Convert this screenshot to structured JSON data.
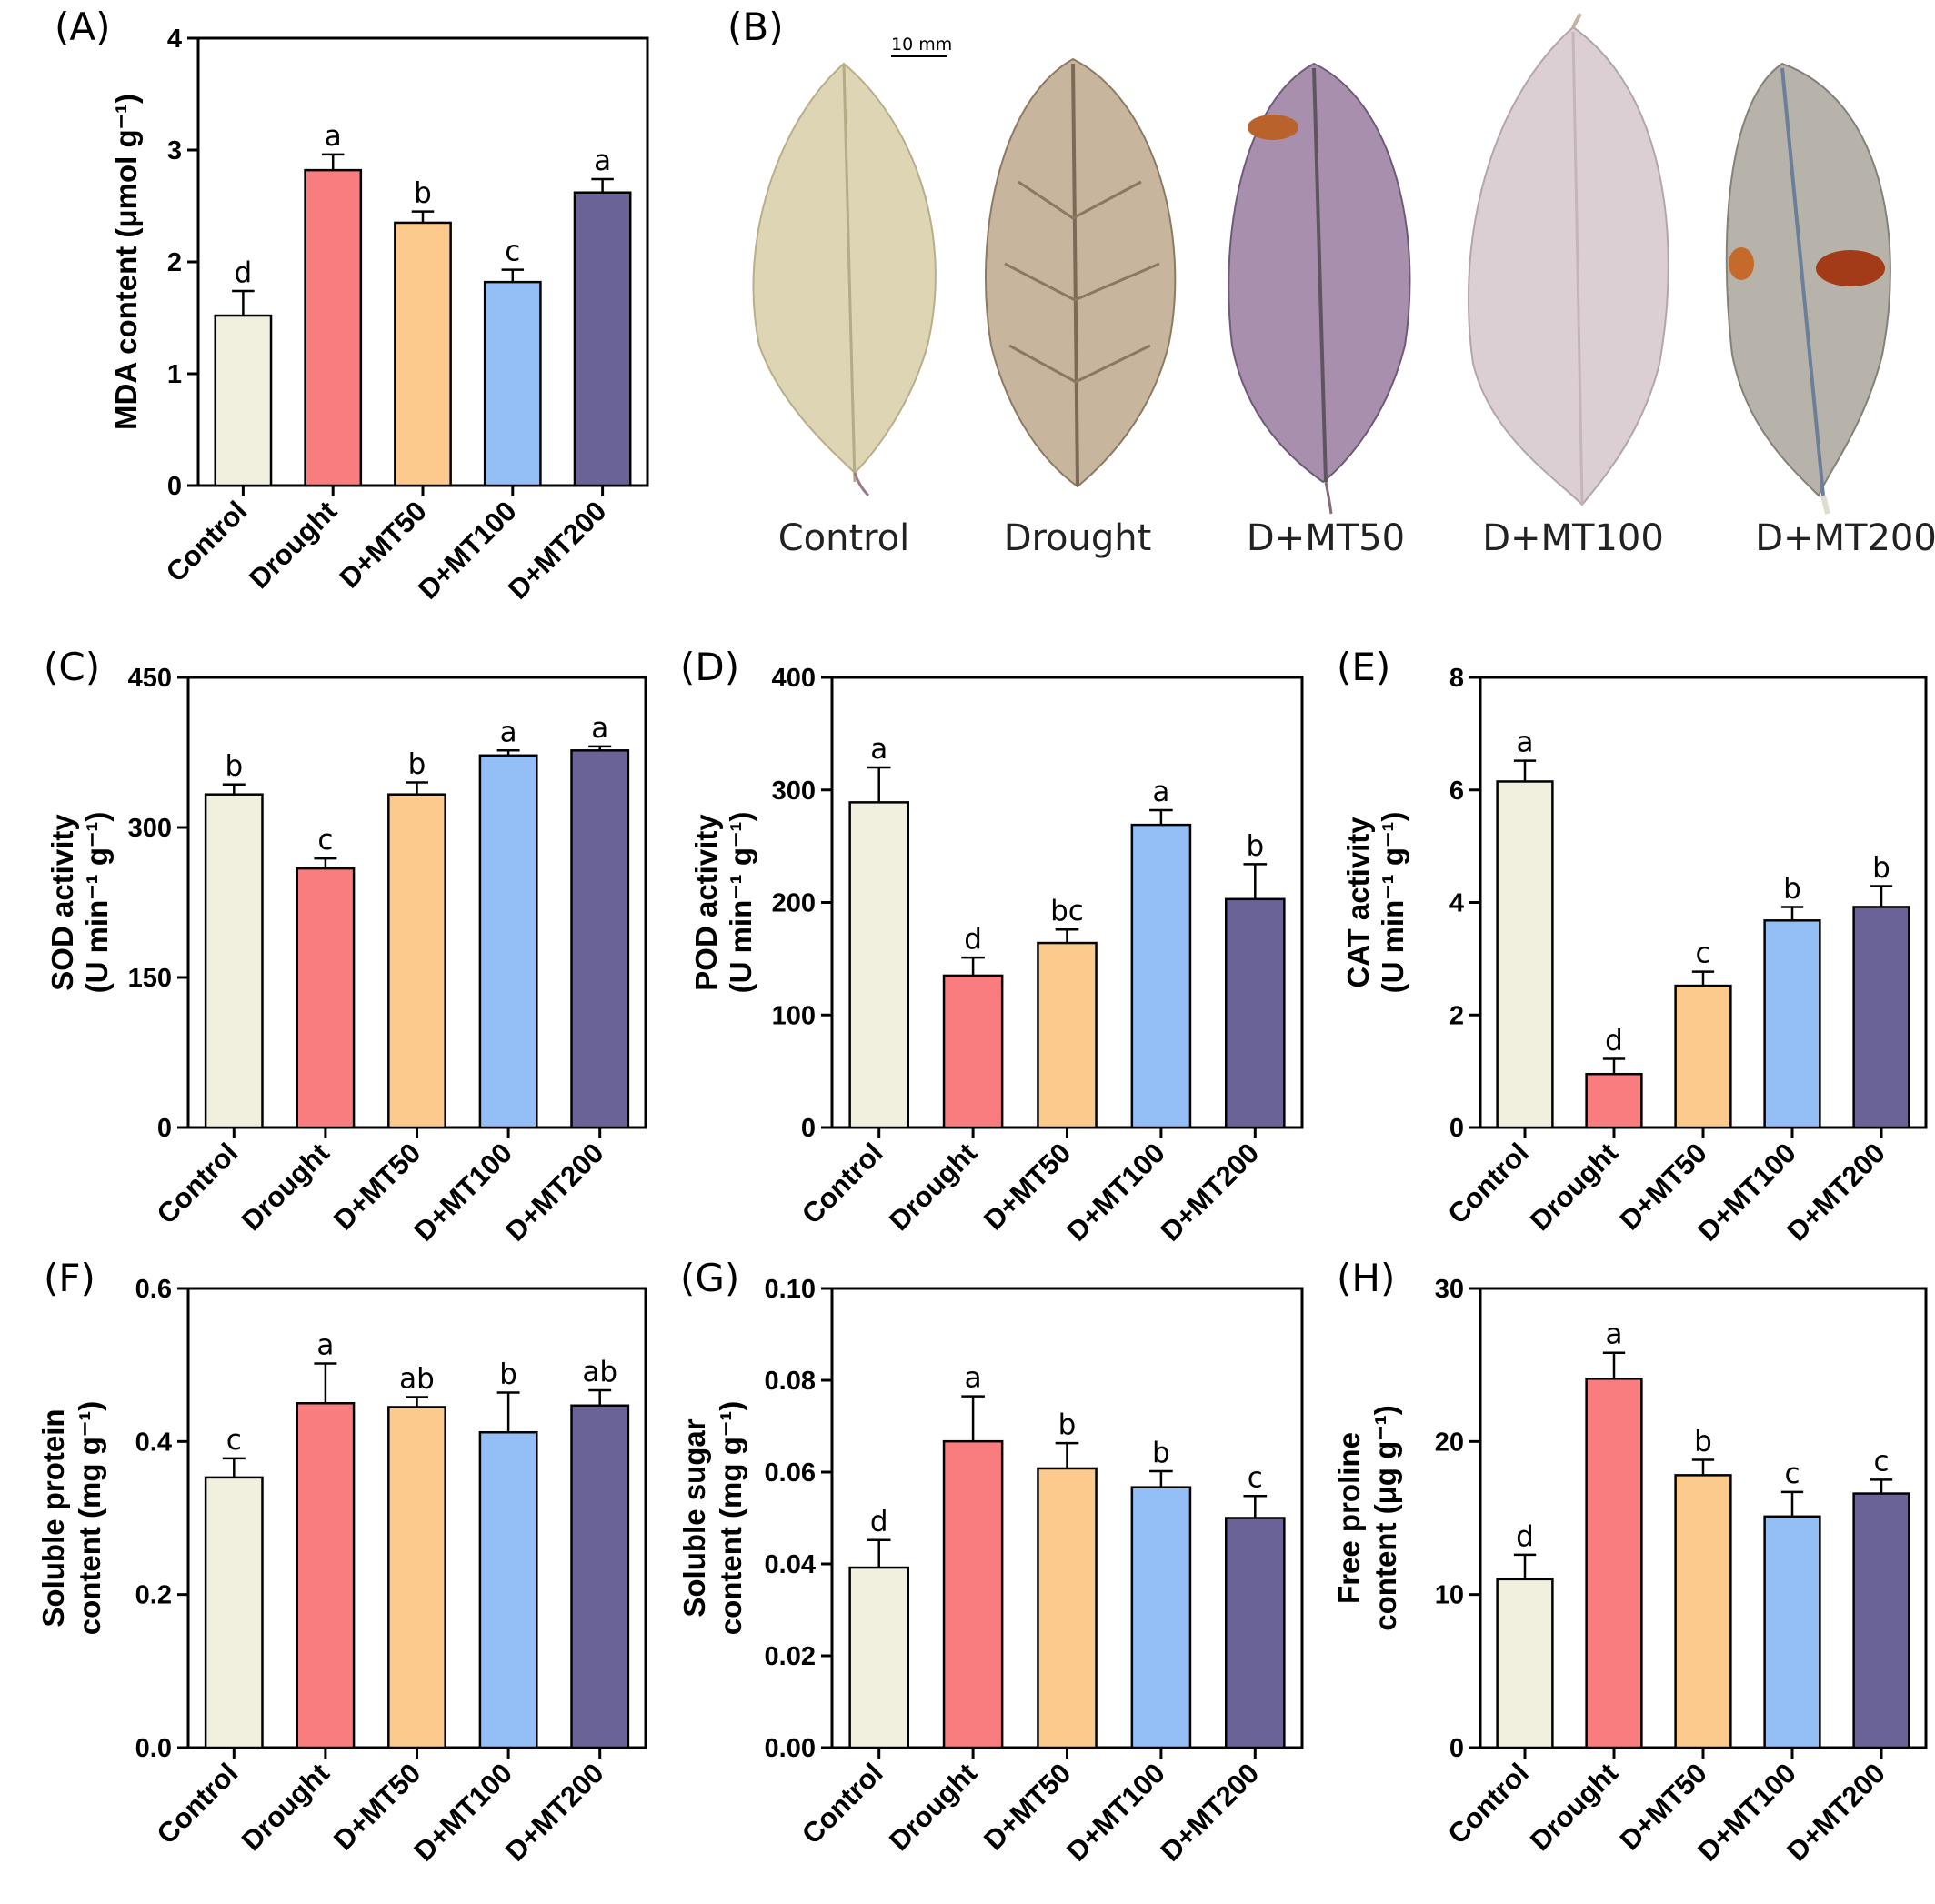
{
  "chart_data": [
    {
      "panel": "(A)",
      "type": "bar",
      "categories": [
        "Control",
        "Drought",
        "D+MT50",
        "D+MT100",
        "D+MT200"
      ],
      "values": [
        1.52,
        2.82,
        2.35,
        1.82,
        2.62
      ],
      "errors": [
        0.22,
        0.14,
        0.1,
        0.11,
        0.12
      ],
      "letters": [
        "d",
        "a",
        "b",
        "c",
        "a"
      ],
      "ylabel": "MDA content (μmol g⁻¹)",
      "ylim": [
        0,
        4
      ],
      "yticks": [
        "0",
        "1",
        "2",
        "3",
        "4"
      ]
    },
    {
      "panel": "(C)",
      "type": "bar",
      "categories": [
        "Control",
        "Drought",
        "D+MT50",
        "D+MT100",
        "D+MT200"
      ],
      "values": [
        333,
        259,
        333,
        372,
        377
      ],
      "errors": [
        10,
        10,
        12,
        5,
        4
      ],
      "letters": [
        "b",
        "c",
        "b",
        "a",
        "a"
      ],
      "ylabel": "SOD activity",
      "ylabel2": "(U min⁻¹ g⁻¹)",
      "ylim": [
        0,
        450
      ],
      "yticks": [
        "0",
        "150",
        "300",
        "450"
      ]
    },
    {
      "panel": "(D)",
      "type": "bar",
      "categories": [
        "Control",
        "Drought",
        "D+MT50",
        "D+MT100",
        "D+MT200"
      ],
      "values": [
        289,
        135,
        164,
        269,
        203
      ],
      "errors": [
        31,
        16,
        12,
        13,
        31
      ],
      "letters": [
        "a",
        "d",
        "bc",
        "a",
        "b"
      ],
      "ylabel": "POD activity",
      "ylabel2": "(U min⁻¹ g⁻¹)",
      "ylim": [
        0,
        400
      ],
      "yticks": [
        "0",
        "100",
        "200",
        "300",
        "400"
      ]
    },
    {
      "panel": "(E)",
      "type": "bar",
      "categories": [
        "Control",
        "Drought",
        "D+MT50",
        "D+MT100",
        "D+MT200"
      ],
      "values": [
        6.15,
        0.95,
        2.52,
        3.68,
        3.92
      ],
      "errors": [
        0.37,
        0.27,
        0.25,
        0.24,
        0.37
      ],
      "letters": [
        "a",
        "d",
        "c",
        "b",
        "b"
      ],
      "ylabel": "CAT activity",
      "ylabel2": "(U min⁻¹ g⁻¹)",
      "ylim": [
        0,
        8
      ],
      "yticks": [
        "0",
        "2",
        "4",
        "6",
        "8"
      ]
    },
    {
      "panel": "(F)",
      "type": "bar",
      "categories": [
        "Control",
        "Drought",
        "D+MT50",
        "D+MT100",
        "D+MT200"
      ],
      "values": [
        0.353,
        0.45,
        0.445,
        0.412,
        0.447
      ],
      "errors": [
        0.025,
        0.052,
        0.013,
        0.052,
        0.02
      ],
      "letters": [
        "c",
        "a",
        "ab",
        "b",
        "ab"
      ],
      "ylabel": "Soluble protein",
      "ylabel2": "content (mg g⁻¹)",
      "ylim": [
        0,
        0.6
      ],
      "yticks": [
        "0.0",
        "0.2",
        "0.4",
        "0.6"
      ]
    },
    {
      "panel": "(G)",
      "type": "bar",
      "categories": [
        "Control",
        "Drought",
        "D+MT50",
        "D+MT100",
        "D+MT200"
      ],
      "values": [
        0.0392,
        0.0667,
        0.0608,
        0.0567,
        0.05
      ],
      "errors": [
        0.006,
        0.0098,
        0.0055,
        0.0035,
        0.0048
      ],
      "letters": [
        "d",
        "a",
        "b",
        "b",
        "c"
      ],
      "ylabel": "Soluble sugar",
      "ylabel2": "content (mg g⁻¹)",
      "ylim": [
        0,
        0.1
      ],
      "yticks": [
        "0.00",
        "0.02",
        "0.04",
        "0.06",
        "0.08",
        "0.10"
      ]
    },
    {
      "panel": "(H)",
      "type": "bar",
      "categories": [
        "Control",
        "Drought",
        "D+MT50",
        "D+MT100",
        "D+MT200"
      ],
      "values": [
        11.0,
        24.1,
        17.8,
        15.1,
        16.6
      ],
      "errors": [
        1.6,
        1.7,
        1.0,
        1.6,
        0.9
      ],
      "letters": [
        "d",
        "a",
        "b",
        "c",
        "c"
      ],
      "ylabel": "Free proline",
      "ylabel2": "content (μg g⁻¹)",
      "ylim": [
        0,
        30
      ],
      "yticks": [
        "0",
        "10",
        "20",
        "30"
      ]
    }
  ],
  "colors": [
    "#f1efdd",
    "#f97d7e",
    "#fdca8e",
    "#93bff6",
    "#6a6398"
  ],
  "photo": {
    "panel": "(B)",
    "scale_bar": "10 mm",
    "captions": [
      "Control",
      "Drought",
      "D+MT50",
      "D+MT100",
      "D+MT200"
    ]
  }
}
